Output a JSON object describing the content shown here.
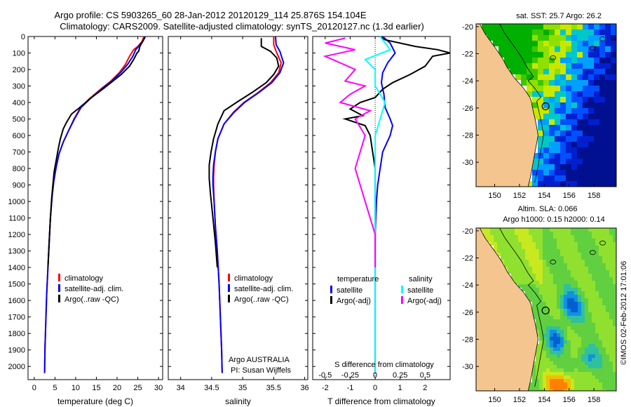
{
  "title": {
    "line1": "Argo profile: CS 5903265_60 28-Jan-2012 20120129_114 25.876S 154.104E",
    "line2": "Climatology: CARS2009. Satellite-adjusted climatology: synTS_20120127.nc (1.3d earlier)"
  },
  "chart_data": [
    {
      "type": "line",
      "panel": "temperature",
      "xlabel": "temperature (deg C)",
      "ylabel": "",
      "xlim": [
        -1.5,
        31
      ],
      "ylim": [
        2080,
        0
      ],
      "xticks": [
        0,
        5,
        10,
        15,
        20,
        25,
        30
      ],
      "yticks": [
        0,
        100,
        200,
        300,
        400,
        500,
        600,
        700,
        800,
        900,
        1000,
        1100,
        1200,
        1300,
        1400,
        1500,
        1600,
        1700,
        1800,
        1900,
        2000
      ],
      "legend": [
        "climatology",
        "satellite-adj. clim.",
        "Argo(..raw -QC)"
      ],
      "series": [
        {
          "name": "climatology",
          "color": "#ff0000",
          "points": [
            [
              26.5,
              0
            ],
            [
              26.0,
              30
            ],
            [
              25.0,
              60
            ],
            [
              24.0,
              80
            ],
            [
              23.0,
              120
            ],
            [
              22.0,
              170
            ],
            [
              20.5,
              220
            ],
            [
              18.5,
              270
            ],
            [
              16.0,
              320
            ],
            [
              13.2,
              380
            ],
            [
              11.2,
              430
            ],
            [
              9.6,
              500
            ],
            [
              8.3,
              570
            ],
            [
              7.0,
              640
            ],
            [
              6.0,
              710
            ],
            [
              5.3,
              790
            ],
            [
              4.7,
              880
            ],
            [
              4.3,
              970
            ],
            [
              3.9,
              1100
            ],
            [
              3.6,
              1250
            ],
            [
              3.3,
              1400
            ],
            [
              3.0,
              1560
            ],
            [
              2.8,
              1720
            ],
            [
              2.6,
              1880
            ],
            [
              2.5,
              2040
            ]
          ]
        },
        {
          "name": "satellite-adj. clim.",
          "color": "#0000ff",
          "points": [
            [
              26.8,
              0
            ],
            [
              26.2,
              30
            ],
            [
              25.2,
              60
            ],
            [
              24.5,
              80
            ],
            [
              23.8,
              120
            ],
            [
              22.5,
              170
            ],
            [
              20.8,
              220
            ],
            [
              18.7,
              270
            ],
            [
              16.2,
              320
            ],
            [
              13.4,
              380
            ],
            [
              11.3,
              430
            ],
            [
              9.7,
              500
            ],
            [
              8.3,
              570
            ],
            [
              7.0,
              640
            ],
            [
              6.0,
              710
            ],
            [
              5.3,
              790
            ],
            [
              4.7,
              880
            ],
            [
              4.3,
              970
            ],
            [
              3.9,
              1100
            ],
            [
              3.6,
              1250
            ],
            [
              3.3,
              1400
            ],
            [
              3.0,
              1560
            ],
            [
              2.8,
              1720
            ],
            [
              2.6,
              1880
            ],
            [
              2.5,
              2040
            ]
          ]
        },
        {
          "name": "Argo(..raw -QC)",
          "color": "#000000",
          "points": [
            [
              26.7,
              5
            ],
            [
              26.4,
              20
            ],
            [
              25.5,
              60
            ],
            [
              25.2,
              90
            ],
            [
              24.8,
              100
            ],
            [
              24.0,
              140
            ],
            [
              23.0,
              180
            ],
            [
              21.0,
              230
            ],
            [
              19.0,
              270
            ],
            [
              16.5,
              320
            ],
            [
              13.8,
              370
            ],
            [
              11.0,
              430
            ],
            [
              9.0,
              470
            ],
            [
              7.8,
              520
            ],
            [
              7.0,
              560
            ],
            [
              6.3,
              620
            ],
            [
              5.8,
              680
            ],
            [
              5.3,
              750
            ],
            [
              4.8,
              820
            ],
            [
              4.5,
              900
            ],
            [
              4.2,
              980
            ],
            [
              3.9,
              1100
            ],
            [
              3.6,
              1250
            ],
            [
              3.3,
              1400
            ]
          ]
        }
      ]
    },
    {
      "type": "line",
      "panel": "salinity",
      "xlabel": "salinity",
      "ylabel": "",
      "xlim": [
        33.8,
        36.05
      ],
      "ylim": [
        2080,
        0
      ],
      "xticks": [
        34,
        34.5,
        35,
        35.5,
        36
      ],
      "xtick_labels": [
        "34",
        "34.5",
        "35",
        "35.5",
        "36"
      ],
      "legend": [
        "climatology",
        "satellite-adj. clim.",
        "Argo(..raw -QC)"
      ],
      "series": [
        {
          "name": "climatology",
          "color": "#ff0000",
          "points": [
            [
              35.5,
              0
            ],
            [
              35.5,
              50
            ],
            [
              35.54,
              90
            ],
            [
              35.62,
              160
            ],
            [
              35.58,
              220
            ],
            [
              35.45,
              280
            ],
            [
              35.25,
              340
            ],
            [
              35.02,
              400
            ],
            [
              34.85,
              460
            ],
            [
              34.7,
              530
            ],
            [
              34.6,
              620
            ],
            [
              34.56,
              700
            ],
            [
              34.54,
              780
            ],
            [
              34.53,
              850
            ],
            [
              34.53,
              900
            ],
            [
              34.54,
              1000
            ],
            [
              34.56,
              1150
            ],
            [
              34.59,
              1300
            ],
            [
              34.62,
              1500
            ],
            [
              34.64,
              1700
            ],
            [
              34.66,
              1900
            ],
            [
              34.67,
              2040
            ]
          ]
        },
        {
          "name": "satellite-adj. clim.",
          "color": "#0000ff",
          "points": [
            [
              35.53,
              0
            ],
            [
              35.54,
              50
            ],
            [
              35.6,
              90
            ],
            [
              35.66,
              160
            ],
            [
              35.6,
              220
            ],
            [
              35.47,
              280
            ],
            [
              35.26,
              340
            ],
            [
              35.03,
              400
            ],
            [
              34.86,
              460
            ],
            [
              34.7,
              530
            ],
            [
              34.6,
              620
            ],
            [
              34.56,
              700
            ],
            [
              34.53,
              780
            ],
            [
              34.52,
              850
            ],
            [
              34.52,
              900
            ],
            [
              34.54,
              1000
            ],
            [
              34.56,
              1150
            ],
            [
              34.59,
              1300
            ],
            [
              34.62,
              1500
            ],
            [
              34.64,
              1700
            ],
            [
              34.66,
              1900
            ],
            [
              34.67,
              2040
            ]
          ]
        },
        {
          "name": "Argo(..raw -QC)",
          "color": "#000000",
          "points": [
            [
              35.3,
              10
            ],
            [
              35.3,
              60
            ],
            [
              35.45,
              90
            ],
            [
              35.55,
              130
            ],
            [
              35.58,
              180
            ],
            [
              35.5,
              230
            ],
            [
              35.38,
              280
            ],
            [
              35.15,
              340
            ],
            [
              34.9,
              400
            ],
            [
              34.7,
              450
            ],
            [
              34.6,
              530
            ],
            [
              34.53,
              620
            ],
            [
              34.49,
              700
            ],
            [
              34.46,
              780
            ],
            [
              34.46,
              860
            ],
            [
              34.48,
              950
            ],
            [
              34.52,
              1100
            ],
            [
              34.56,
              1250
            ],
            [
              34.59,
              1400
            ]
          ]
        }
      ],
      "annotations": [
        "Argo AUSTRALIA",
        "PI: Susan Wijffels"
      ]
    },
    {
      "type": "line",
      "panel": "difference",
      "xlabel": "T difference from climatology",
      "top_xlabel": "S difference from climatology",
      "xlim": [
        -2.5,
        3
      ],
      "ylim": [
        2080,
        0
      ],
      "xticks": [
        -2,
        -1,
        0,
        1,
        2
      ],
      "top_xticks": [
        -0.5,
        -0.25,
        0,
        0.25,
        0.5
      ],
      "top_xtick_labels": [
        "-0.5",
        "-0.25",
        "0",
        "0.25",
        "0.5"
      ],
      "legend_headers": [
        "temperature",
        "salinity"
      ],
      "legend": [
        "satellite",
        "Argo(-adj)",
        "satellite",
        "Argo(-adj)"
      ],
      "series": [
        {
          "name": "temperature satellite",
          "color": "#0000ff",
          "points": [
            [
              0.3,
              0
            ],
            [
              0.6,
              40
            ],
            [
              0.8,
              100
            ],
            [
              0.5,
              160
            ],
            [
              0.3,
              220
            ],
            [
              0.25,
              280
            ],
            [
              0.35,
              350
            ],
            [
              0.4,
              430
            ],
            [
              0.6,
              500
            ],
            [
              0.7,
              540
            ],
            [
              0.6,
              600
            ],
            [
              0.3,
              700
            ],
            [
              0.2,
              800
            ],
            [
              0.1,
              900
            ],
            [
              0.05,
              1000
            ],
            [
              0.0,
              1200
            ],
            [
              0.0,
              2040
            ]
          ]
        },
        {
          "name": "temperature Argo(-adj)",
          "color": "#000000",
          "points": [
            [
              0.2,
              0
            ],
            [
              0.4,
              20
            ],
            [
              1.6,
              60
            ],
            [
              2.5,
              80
            ],
            [
              3.0,
              100
            ],
            [
              2.3,
              120
            ],
            [
              2.0,
              180
            ],
            [
              1.4,
              230
            ],
            [
              0.7,
              280
            ],
            [
              0.3,
              320
            ],
            [
              0.0,
              370
            ],
            [
              -0.6,
              400
            ],
            [
              -1.0,
              440
            ],
            [
              -0.5,
              480
            ],
            [
              -1.2,
              500
            ],
            [
              -0.4,
              540
            ],
            [
              -0.2,
              600
            ],
            [
              -0.1,
              700
            ],
            [
              0.0,
              800
            ],
            [
              0.0,
              1400
            ]
          ]
        },
        {
          "name": "salinity satellite",
          "color": "#00ffff",
          "points": [
            [
              0.05,
              0
            ],
            [
              0.1,
              40
            ],
            [
              0.15,
              80
            ],
            [
              -0.1,
              140
            ],
            [
              0.0,
              200
            ],
            [
              0.0,
              300
            ],
            [
              0.1,
              400
            ],
            [
              0.05,
              500
            ],
            [
              0.0,
              600
            ],
            [
              0.0,
              800
            ],
            [
              0.0,
              1000
            ],
            [
              0.0,
              1500
            ],
            [
              0.0,
              2040
            ]
          ]
        },
        {
          "name": "salinity Argo(-adj)",
          "color": "#ff00ff",
          "points": [
            [
              -0.3,
              10
            ],
            [
              -0.5,
              40
            ],
            [
              -0.2,
              80
            ],
            [
              -0.5,
              120
            ],
            [
              -0.2,
              200
            ],
            [
              -0.3,
              270
            ],
            [
              -0.1,
              300
            ],
            [
              -0.25,
              350
            ],
            [
              -0.35,
              400
            ],
            [
              -0.05,
              450
            ],
            [
              -0.2,
              500
            ],
            [
              -0.1,
              600
            ],
            [
              -0.15,
              700
            ],
            [
              -0.2,
              800
            ],
            [
              -0.15,
              900
            ],
            [
              -0.1,
              1000
            ],
            [
              0.0,
              1200
            ],
            [
              0.0,
              1400
            ]
          ]
        }
      ]
    },
    {
      "type": "heatmap",
      "panel": "map-sst",
      "title": "sat. SST: 25.7 Argo: 26.2",
      "xlim": [
        148.5,
        159.8
      ],
      "ylim": [
        -31.8,
        -19.8
      ],
      "xticks": [
        150,
        152,
        154,
        156,
        158
      ],
      "yticks": [
        -20,
        -22,
        -24,
        -26,
        -28,
        -30
      ],
      "argo_position": [
        154.104,
        -25.876
      ]
    },
    {
      "type": "heatmap",
      "panel": "map-sla",
      "title": "Altim. SLA: 0.066",
      "subtitle": "Argo h1000: 0.15 h2000: 0.14",
      "xlim": [
        148.5,
        159.8
      ],
      "ylim": [
        -31.8,
        -19.8
      ],
      "xticks": [
        150,
        152,
        154,
        156,
        158
      ],
      "yticks": [
        -20,
        -22,
        -24,
        -26,
        -28,
        -30
      ],
      "argo_position": [
        154.104,
        -25.876
      ]
    }
  ],
  "credit": "©IMOS 02-Feb-2012 17:01:06"
}
